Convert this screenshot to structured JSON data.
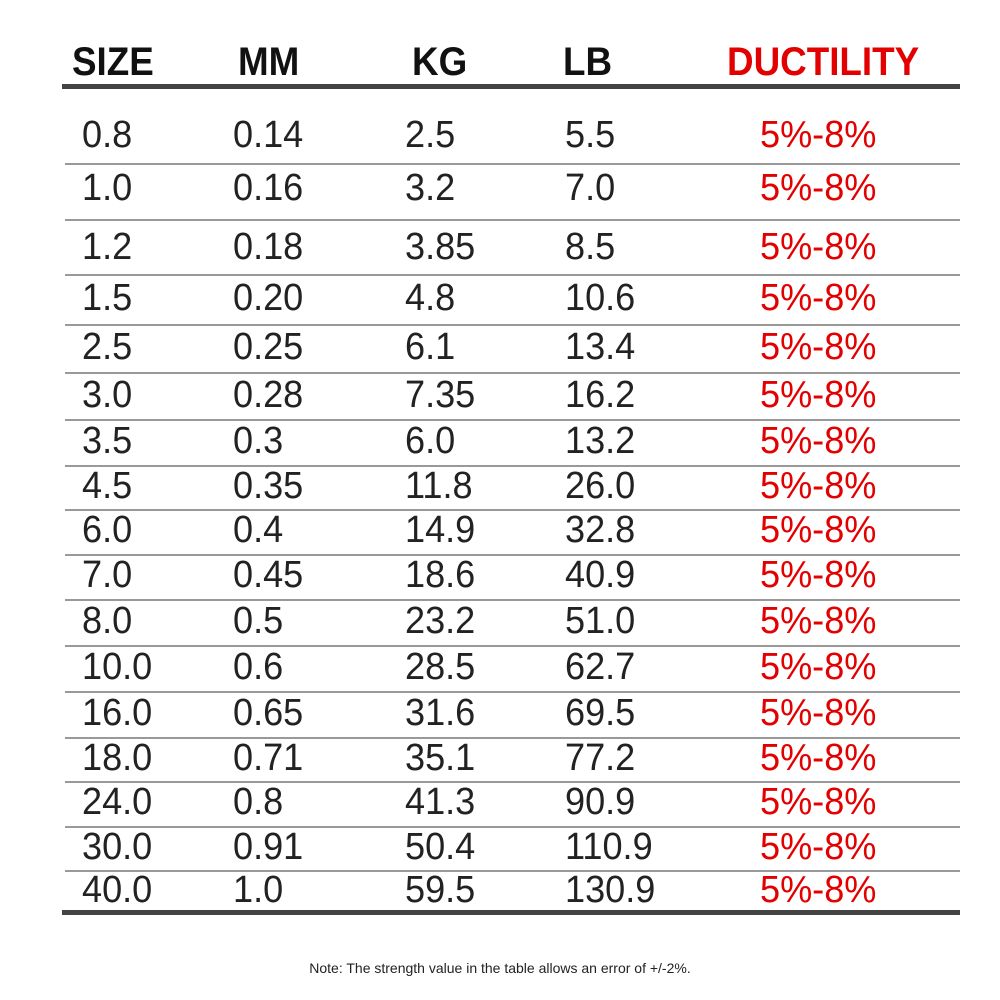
{
  "headers": {
    "size": "SIZE",
    "mm": "MM",
    "kg": "KG",
    "lb": "LB",
    "ductility": "DUCTILITY"
  },
  "colors": {
    "accent": "#e30000",
    "rule": "#444444"
  },
  "rows": [
    {
      "size": "0.8",
      "mm": "0.14",
      "kg": "2.5",
      "lb": "5.5",
      "ductility": "5%-8%"
    },
    {
      "size": "1.0",
      "mm": "0.16",
      "kg": "3.2",
      "lb": "7.0",
      "ductility": "5%-8%"
    },
    {
      "size": "1.2",
      "mm": "0.18",
      "kg": "3.85",
      "lb": "8.5",
      "ductility": "5%-8%"
    },
    {
      "size": "1.5",
      "mm": "0.20",
      "kg": "4.8",
      "lb": "10.6",
      "ductility": "5%-8%"
    },
    {
      "size": "2.5",
      "mm": "0.25",
      "kg": "6.1",
      "lb": "13.4",
      "ductility": "5%-8%"
    },
    {
      "size": "3.0",
      "mm": "0.28",
      "kg": "7.35",
      "lb": "16.2",
      "ductility": "5%-8%"
    },
    {
      "size": "3.5",
      "mm": "0.3",
      "kg": "6.0",
      "lb": "13.2",
      "ductility": "5%-8%"
    },
    {
      "size": "4.5",
      "mm": "0.35",
      "kg": "11.8",
      "lb": "26.0",
      "ductility": "5%-8%"
    },
    {
      "size": "6.0",
      "mm": "0.4",
      "kg": "14.9",
      "lb": "32.8",
      "ductility": "5%-8%"
    },
    {
      "size": "7.0",
      "mm": "0.45",
      "kg": "18.6",
      "lb": "40.9",
      "ductility": "5%-8%"
    },
    {
      "size": "8.0",
      "mm": "0.5",
      "kg": "23.2",
      "lb": "51.0",
      "ductility": "5%-8%"
    },
    {
      "size": "10.0",
      "mm": "0.6",
      "kg": "28.5",
      "lb": "62.7",
      "ductility": "5%-8%"
    },
    {
      "size": "16.0",
      "mm": "0.65",
      "kg": "31.6",
      "lb": "69.5",
      "ductility": "5%-8%"
    },
    {
      "size": "18.0",
      "mm": "0.71",
      "kg": "35.1",
      "lb": "77.2",
      "ductility": "5%-8%"
    },
    {
      "size": "24.0",
      "mm": "0.8",
      "kg": "41.3",
      "lb": "90.9",
      "ductility": "5%-8%"
    },
    {
      "size": "30.0",
      "mm": "0.91",
      "kg": "50.4",
      "lb": "110.9",
      "ductility": "5%-8%"
    },
    {
      "size": "40.0",
      "mm": "1.0",
      "kg": "59.5",
      "lb": "130.9",
      "ductility": "5%-8%"
    }
  ],
  "note": "Note: The strength value in the table allows an error of +/-2%."
}
